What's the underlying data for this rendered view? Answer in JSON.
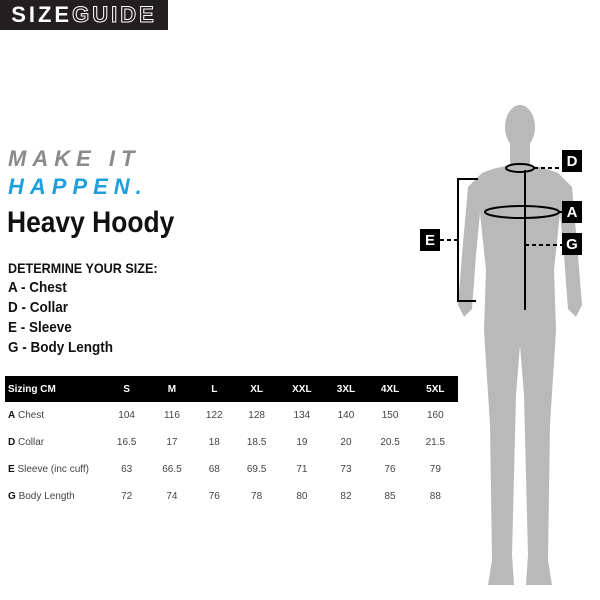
{
  "logo": {
    "part1": "SIZE",
    "part2": "GUIDE"
  },
  "slogan": {
    "line1": "MAKE IT",
    "line2": "HAPPEN.",
    "color1": "#8a8a8a",
    "color2": "#1ea0dc"
  },
  "title": "Heavy Hoody",
  "determine": {
    "heading": "DETERMINE YOUR SIZE:",
    "items": [
      "A - Chest",
      "D - Collar",
      "E - Sleeve",
      "G - Body Length"
    ]
  },
  "table": {
    "headers": [
      "Sizing CM",
      "S",
      "M",
      "L",
      "XL",
      "XXL",
      "3XL",
      "4XL",
      "5XL"
    ],
    "rows": [
      {
        "letter": "A",
        "name": "Chest",
        "values": [
          "104",
          "116",
          "122",
          "128",
          "134",
          "140",
          "150",
          "160"
        ]
      },
      {
        "letter": "D",
        "name": "Collar",
        "values": [
          "16.5",
          "17",
          "18",
          "18.5",
          "19",
          "20",
          "20.5",
          "21.5"
        ]
      },
      {
        "letter": "E",
        "name": "Sleeve (inc cuff)",
        "values": [
          "63",
          "66.5",
          "68",
          "69.5",
          "71",
          "73",
          "76",
          "79"
        ]
      },
      {
        "letter": "G",
        "name": "Body Length",
        "values": [
          "72",
          "74",
          "76",
          "78",
          "80",
          "82",
          "85",
          "88"
        ]
      }
    ]
  },
  "diagram": {
    "labels": {
      "D": "D",
      "A": "A",
      "G": "G",
      "E": "E"
    }
  }
}
